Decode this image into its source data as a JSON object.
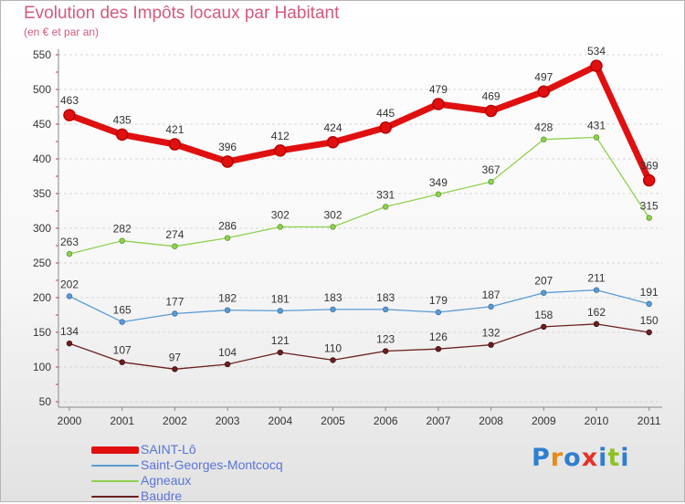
{
  "title": "Evolution des Impôts locaux par Habitant",
  "subtitle": "(en € et par an)",
  "logo": {
    "text": "Proxiti",
    "colors": [
      "#2f7fd0",
      "#e88a1a",
      "#2f7fd0",
      "#e2342b",
      "#2f7fd0",
      "#8fc024",
      "#2f7fd0"
    ]
  },
  "chart_data": {
    "type": "line",
    "x": [
      "2000",
      "2001",
      "2002",
      "2003",
      "2004",
      "2005",
      "2006",
      "2007",
      "2008",
      "2009",
      "2010",
      "2011"
    ],
    "ylim": [
      50,
      550
    ],
    "yticks": [
      50,
      100,
      150,
      200,
      250,
      300,
      350,
      400,
      450,
      500,
      550
    ],
    "grid": "horizontal",
    "legend_position": "bottom-left",
    "series": [
      {
        "name": "SAINT-Lô",
        "color": "#e01010",
        "labels": [
          "463",
          "435",
          "421",
          "396",
          "412",
          "424",
          "445",
          "479",
          "469",
          "497",
          "534",
          "369"
        ],
        "values": [
          463,
          435,
          421,
          396,
          412,
          424,
          445,
          479,
          469,
          497,
          534,
          369
        ]
      },
      {
        "name": "Saint-Georges-Montcocq",
        "color": "#5b9bd5",
        "labels": [
          "202",
          "165",
          "177",
          "182",
          "181",
          "183",
          "183",
          "179",
          "187",
          "207",
          "211",
          "191"
        ],
        "values": [
          202,
          165,
          177,
          182,
          181,
          183,
          183,
          179,
          187,
          207,
          211,
          191
        ]
      },
      {
        "name": "Agneaux",
        "color": "#8fd14f",
        "labels": [
          "263",
          "282",
          "274",
          "286",
          "302",
          "302",
          "331",
          "349",
          "367",
          "428",
          "431",
          "315"
        ],
        "values": [
          263,
          282,
          274,
          286,
          302,
          302,
          331,
          349,
          367,
          428,
          431,
          315
        ]
      },
      {
        "name": "Baudre",
        "color": "#6b1f1f",
        "labels": [
          "134",
          "107",
          "97",
          "104",
          "121",
          "110",
          "123",
          "126",
          "132",
          "158",
          "162",
          "150"
        ],
        "values": [
          134,
          107,
          97,
          104,
          121,
          110,
          123,
          126,
          132,
          158,
          162,
          150
        ]
      }
    ]
  }
}
